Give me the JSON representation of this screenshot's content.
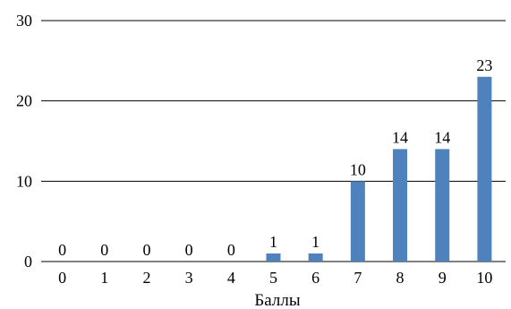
{
  "chart_data": {
    "type": "bar",
    "categories": [
      "0",
      "1",
      "2",
      "3",
      "4",
      "5",
      "6",
      "7",
      "8",
      "9",
      "10"
    ],
    "values": [
      0,
      0,
      0,
      0,
      0,
      1,
      1,
      10,
      14,
      14,
      23
    ],
    "data_labels": [
      "0",
      "0",
      "0",
      "0",
      "0",
      "1",
      "1",
      "10",
      "14",
      "14",
      "23"
    ],
    "yticks": [
      "0",
      "10",
      "20",
      "30"
    ],
    "ylim": [
      0,
      30
    ],
    "xlabel": "Баллы",
    "ylabel": "",
    "title": "",
    "grid": true,
    "legend": "none",
    "bar_color": "#4F81BD",
    "grid_color": "#000000"
  }
}
